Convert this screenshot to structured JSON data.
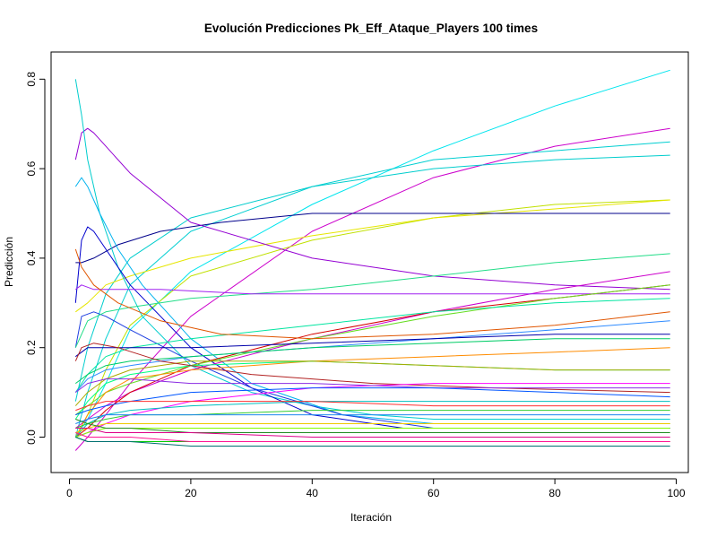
{
  "chart_data": {
    "type": "line",
    "title": "Evolución Predicciones Pk_Eff_Ataque_Players 100 times",
    "xlabel": "Iteración",
    "ylabel": "Predicción",
    "xlim": [
      1,
      99
    ],
    "ylim": [
      -0.05,
      0.82
    ],
    "xticks": [
      0,
      20,
      40,
      60,
      80,
      100
    ],
    "yticks": [
      0.0,
      0.2,
      0.4,
      0.6,
      0.8
    ],
    "grid": false,
    "legend": "none",
    "palette": [
      "#FF0000",
      "#FF4000",
      "#FF8000",
      "#FFBF00",
      "#FFFF00",
      "#BFFF00",
      "#80FF00",
      "#40FF00",
      "#00FF00",
      "#00FF40",
      "#00FF80",
      "#00FFBF",
      "#00FFFF",
      "#00BFFF",
      "#0080FF",
      "#0040FF",
      "#0000FF",
      "#4000FF",
      "#8000FF",
      "#BF00FF",
      "#FF00FF",
      "#FF00BF",
      "#CC0000",
      "#CC6600",
      "#CCCC00",
      "#00CC00",
      "#00CCCC",
      "#0000CC",
      "#CC00CC",
      "#008000"
    ],
    "series": [
      {
        "color": "#00E5EE",
        "x": [
          1,
          3,
          6,
          10,
          20,
          40,
          60,
          80,
          99
        ],
        "values": [
          0.0,
          0.04,
          0.12,
          0.24,
          0.37,
          0.52,
          0.64,
          0.74,
          0.82
        ]
      },
      {
        "color": "#CC00CC",
        "x": [
          1,
          3,
          6,
          10,
          20,
          40,
          60,
          80,
          99
        ],
        "values": [
          -0.03,
          0.0,
          0.05,
          0.12,
          0.27,
          0.46,
          0.58,
          0.65,
          0.69
        ]
      },
      {
        "color": "#00CED1",
        "x": [
          1,
          3,
          6,
          10,
          20,
          40,
          60,
          80,
          99
        ],
        "values": [
          0.0,
          0.1,
          0.22,
          0.34,
          0.46,
          0.56,
          0.62,
          0.64,
          0.66
        ]
      },
      {
        "color": "#00CDCD",
        "x": [
          1,
          3,
          6,
          10,
          20,
          40,
          60,
          80,
          99
        ],
        "values": [
          0.08,
          0.2,
          0.32,
          0.4,
          0.49,
          0.56,
          0.6,
          0.62,
          0.63
        ]
      },
      {
        "color": "#C0E000",
        "x": [
          1,
          3,
          6,
          10,
          20,
          40,
          60,
          80,
          99
        ],
        "values": [
          0.0,
          0.05,
          0.15,
          0.25,
          0.36,
          0.44,
          0.49,
          0.52,
          0.53
        ]
      },
      {
        "color": "#E6E600",
        "x": [
          1,
          3,
          6,
          10,
          20,
          40,
          60,
          80,
          99
        ],
        "values": [
          0.28,
          0.3,
          0.34,
          0.36,
          0.4,
          0.45,
          0.49,
          0.51,
          0.53
        ]
      },
      {
        "color": "#00008B",
        "x": [
          1,
          2,
          4,
          8,
          15,
          25,
          40,
          60,
          80,
          99
        ],
        "values": [
          0.39,
          0.39,
          0.4,
          0.43,
          0.46,
          0.48,
          0.5,
          0.5,
          0.5,
          0.5
        ]
      },
      {
        "color": "#9400D3",
        "x": [
          1,
          2,
          3,
          4,
          6,
          10,
          20,
          40,
          60,
          80,
          99
        ],
        "values": [
          0.62,
          0.68,
          0.69,
          0.68,
          0.65,
          0.59,
          0.48,
          0.4,
          0.36,
          0.34,
          0.33
        ]
      },
      {
        "color": "#00CDCD",
        "x": [
          1,
          2,
          3,
          5,
          8,
          12,
          20,
          30,
          40,
          50,
          60,
          99
        ],
        "values": [
          0.8,
          0.72,
          0.62,
          0.5,
          0.38,
          0.27,
          0.16,
          0.1,
          0.07,
          0.05,
          0.04,
          0.04
        ]
      },
      {
        "color": "#00B2EE",
        "x": [
          1,
          2,
          3,
          5,
          8,
          12,
          20,
          30,
          45,
          60,
          99
        ],
        "values": [
          0.56,
          0.58,
          0.56,
          0.5,
          0.42,
          0.34,
          0.22,
          0.12,
          0.05,
          0.03,
          0.03
        ]
      },
      {
        "color": "#0000CD",
        "x": [
          1,
          2,
          3,
          4,
          6,
          10,
          20,
          30,
          40,
          55,
          99
        ],
        "values": [
          0.3,
          0.44,
          0.47,
          0.46,
          0.42,
          0.34,
          0.2,
          0.11,
          0.05,
          0.02,
          0.02
        ]
      },
      {
        "color": "#1E3FE0",
        "x": [
          1,
          2,
          4,
          6,
          10,
          20,
          30,
          45,
          60,
          99
        ],
        "values": [
          0.2,
          0.27,
          0.28,
          0.27,
          0.24,
          0.17,
          0.11,
          0.05,
          0.02,
          0.02
        ]
      },
      {
        "color": "#22DD88",
        "x": [
          1,
          3,
          6,
          10,
          20,
          40,
          60,
          80,
          99
        ],
        "values": [
          0.2,
          0.26,
          0.28,
          0.29,
          0.31,
          0.33,
          0.36,
          0.39,
          0.41
        ]
      },
      {
        "color": "#CC00CC",
        "x": [
          1,
          3,
          6,
          10,
          20,
          40,
          60,
          80,
          99
        ],
        "values": [
          0.02,
          0.04,
          0.07,
          0.1,
          0.15,
          0.22,
          0.28,
          0.33,
          0.37
        ]
      },
      {
        "color": "#A020F0",
        "x": [
          1,
          2,
          4,
          8,
          15,
          30,
          50,
          70,
          99
        ],
        "values": [
          0.33,
          0.34,
          0.33,
          0.33,
          0.33,
          0.32,
          0.32,
          0.32,
          0.32
        ]
      },
      {
        "color": "#D50000",
        "x": [
          1,
          3,
          6,
          10,
          20,
          40,
          60,
          80,
          99
        ],
        "values": [
          0.0,
          0.02,
          0.06,
          0.1,
          0.16,
          0.23,
          0.28,
          0.31,
          0.34
        ]
      },
      {
        "color": "#66DD22",
        "x": [
          1,
          3,
          6,
          10,
          20,
          40,
          60,
          80,
          99
        ],
        "values": [
          0.05,
          0.07,
          0.1,
          0.12,
          0.16,
          0.22,
          0.27,
          0.31,
          0.34
        ]
      },
      {
        "color": "#00E5A0",
        "x": [
          1,
          3,
          6,
          10,
          20,
          40,
          60,
          80,
          99
        ],
        "values": [
          0.1,
          0.14,
          0.18,
          0.2,
          0.22,
          0.25,
          0.28,
          0.3,
          0.31
        ]
      },
      {
        "color": "#E05500",
        "x": [
          1,
          2,
          4,
          8,
          15,
          25,
          40,
          60,
          80,
          99
        ],
        "values": [
          0.42,
          0.38,
          0.34,
          0.3,
          0.26,
          0.23,
          0.22,
          0.23,
          0.25,
          0.28
        ]
      },
      {
        "color": "#2E8BFF",
        "x": [
          1,
          3,
          6,
          10,
          20,
          40,
          60,
          80,
          99
        ],
        "values": [
          0.1,
          0.13,
          0.15,
          0.16,
          0.18,
          0.2,
          0.22,
          0.24,
          0.26
        ]
      },
      {
        "color": "#0000AA",
        "x": [
          1,
          3,
          6,
          10,
          20,
          40,
          60,
          80,
          99
        ],
        "values": [
          0.18,
          0.2,
          0.2,
          0.2,
          0.2,
          0.21,
          0.22,
          0.23,
          0.23
        ]
      },
      {
        "color": "#00CC66",
        "x": [
          1,
          3,
          6,
          10,
          20,
          40,
          60,
          80,
          99
        ],
        "values": [
          0.12,
          0.14,
          0.16,
          0.17,
          0.18,
          0.2,
          0.21,
          0.22,
          0.22
        ]
      },
      {
        "color": "#FF8C00",
        "x": [
          1,
          3,
          6,
          10,
          20,
          40,
          60,
          80,
          99
        ],
        "values": [
          0.0,
          0.05,
          0.1,
          0.13,
          0.15,
          0.17,
          0.18,
          0.19,
          0.2
        ]
      },
      {
        "color": "#00FF7F",
        "x": [
          1,
          3,
          6,
          10,
          20,
          40,
          60,
          80,
          99
        ],
        "values": [
          0.04,
          0.08,
          0.12,
          0.14,
          0.16,
          0.17,
          0.16,
          0.15,
          0.15
        ]
      },
      {
        "color": "#AAAA00",
        "x": [
          1,
          3,
          6,
          10,
          20,
          40,
          60,
          80,
          99
        ],
        "values": [
          0.07,
          0.1,
          0.13,
          0.15,
          0.17,
          0.17,
          0.16,
          0.15,
          0.15
        ]
      },
      {
        "color": "#B22222",
        "x": [
          1,
          2,
          4,
          8,
          15,
          30,
          50,
          70,
          99
        ],
        "values": [
          0.17,
          0.2,
          0.21,
          0.2,
          0.17,
          0.14,
          0.12,
          0.11,
          0.1
        ]
      },
      {
        "color": "#FF00FF",
        "x": [
          1,
          3,
          6,
          10,
          20,
          40,
          60,
          80,
          99
        ],
        "values": [
          0.0,
          0.01,
          0.03,
          0.05,
          0.08,
          0.11,
          0.12,
          0.12,
          0.12
        ]
      },
      {
        "color": "#8A2BE2",
        "x": [
          1,
          3,
          6,
          10,
          20,
          40,
          60,
          80,
          99
        ],
        "values": [
          0.1,
          0.12,
          0.13,
          0.13,
          0.12,
          0.12,
          0.11,
          0.11,
          0.11
        ]
      },
      {
        "color": "#0055FF",
        "x": [
          1,
          3,
          6,
          10,
          20,
          40,
          60,
          80,
          99
        ],
        "values": [
          0.05,
          0.06,
          0.07,
          0.08,
          0.1,
          0.11,
          0.11,
          0.1,
          0.09
        ]
      },
      {
        "color": "#00BFBF",
        "x": [
          1,
          3,
          6,
          10,
          20,
          40,
          60,
          80,
          99
        ],
        "values": [
          0.0,
          0.03,
          0.05,
          0.06,
          0.07,
          0.08,
          0.08,
          0.08,
          0.08
        ]
      },
      {
        "color": "#FF3030",
        "x": [
          1,
          3,
          6,
          10,
          20,
          40,
          60,
          80,
          99
        ],
        "values": [
          0.06,
          0.07,
          0.08,
          0.08,
          0.08,
          0.08,
          0.07,
          0.07,
          0.07
        ]
      },
      {
        "color": "#32CD32",
        "x": [
          1,
          3,
          6,
          10,
          20,
          40,
          60,
          80,
          99
        ],
        "values": [
          0.02,
          0.03,
          0.04,
          0.05,
          0.05,
          0.06,
          0.06,
          0.06,
          0.06
        ]
      },
      {
        "color": "#1C86EE",
        "x": [
          1,
          3,
          6,
          10,
          20,
          40,
          60,
          80,
          99
        ],
        "values": [
          0.03,
          0.04,
          0.05,
          0.05,
          0.05,
          0.05,
          0.05,
          0.05,
          0.05
        ]
      },
      {
        "color": "#EEC900",
        "x": [
          1,
          3,
          6,
          10,
          20,
          40,
          60,
          80,
          99
        ],
        "values": [
          0.01,
          0.02,
          0.03,
          0.03,
          0.03,
          0.03,
          0.03,
          0.03,
          0.03
        ]
      },
      {
        "color": "#7FFF00",
        "x": [
          1,
          3,
          6,
          10,
          20,
          40,
          60,
          80,
          99
        ],
        "values": [
          0.0,
          0.01,
          0.02,
          0.02,
          0.02,
          0.02,
          0.02,
          0.02,
          0.02
        ]
      },
      {
        "color": "#228B22",
        "x": [
          1,
          3,
          6,
          10,
          20,
          40,
          60,
          80,
          99
        ],
        "values": [
          0.04,
          0.03,
          0.02,
          0.02,
          0.01,
          0.01,
          0.01,
          0.01,
          0.01
        ]
      },
      {
        "color": "#DD0088",
        "x": [
          1,
          3,
          6,
          10,
          20,
          40,
          60,
          80,
          99
        ],
        "values": [
          0.02,
          0.02,
          0.01,
          0.01,
          0.01,
          0.0,
          0.0,
          0.0,
          0.0
        ]
      },
      {
        "color": "#00CC00",
        "x": [
          1,
          3,
          6,
          10,
          20,
          40,
          60,
          80,
          99
        ],
        "values": [
          0.0,
          -0.01,
          -0.01,
          -0.01,
          -0.01,
          -0.01,
          -0.01,
          -0.01,
          -0.01
        ]
      },
      {
        "color": "#007070",
        "x": [
          1,
          3,
          6,
          10,
          20,
          40,
          60,
          80,
          99
        ],
        "values": [
          0.0,
          -0.01,
          -0.01,
          -0.01,
          -0.02,
          -0.02,
          -0.02,
          -0.02,
          -0.02
        ]
      },
      {
        "color": "#FF1493",
        "x": [
          1,
          3,
          6,
          10,
          20,
          40,
          60,
          80,
          99
        ],
        "values": [
          0.01,
          0.0,
          0.0,
          0.0,
          -0.01,
          -0.01,
          -0.01,
          -0.01,
          -0.01
        ]
      }
    ]
  }
}
